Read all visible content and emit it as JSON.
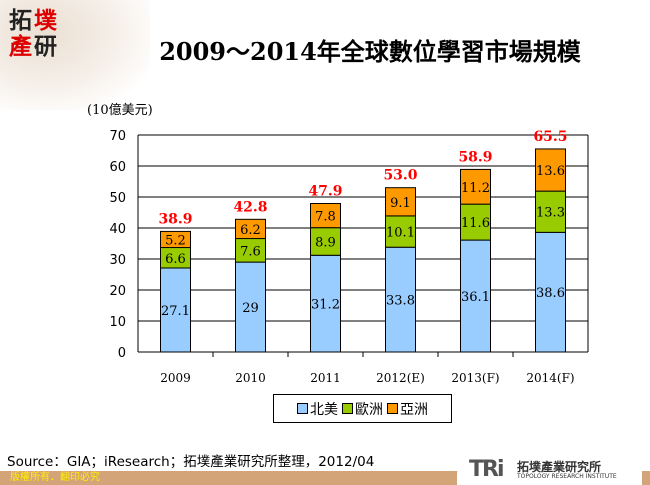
{
  "logo": {
    "chars": [
      "拓",
      "墣",
      "產",
      "研"
    ]
  },
  "title": "2009～2014年全球數位學習市場規模",
  "chart_data": {
    "type": "bar",
    "stacked": true,
    "title": "2009～2014年全球數位學習市場規模",
    "ylabel": "(10億美元)",
    "ylim": [
      0,
      70
    ],
    "yticks": [
      0,
      10,
      20,
      30,
      40,
      50,
      60,
      70
    ],
    "grid": true,
    "legend_position": "bottom",
    "categories": [
      "2009",
      "2010",
      "2011",
      "2012(E)",
      "2013(F)",
      "2014(F)"
    ],
    "series": [
      {
        "name": "北美",
        "color": "#99ccff",
        "values": [
          27.1,
          29,
          31.2,
          33.8,
          36.1,
          38.6
        ],
        "labels": [
          "27.1",
          "29",
          "31.2",
          "33.8",
          "36.1",
          "38.6"
        ]
      },
      {
        "name": "歐洲",
        "color": "#99cc00",
        "values": [
          6.6,
          7.6,
          8.9,
          10.1,
          11.6,
          13.3
        ],
        "labels": [
          "6.6",
          "7.6",
          "8.9",
          "10.1",
          "11.6",
          "13.3"
        ]
      },
      {
        "name": "亞洲",
        "color": "#ff9900",
        "values": [
          5.2,
          6.2,
          7.8,
          9.1,
          11.2,
          13.6
        ],
        "labels": [
          "5.2",
          "6.2",
          "7.8",
          "9.1",
          "11.2",
          "13.6"
        ]
      }
    ],
    "totals": [
      "38.9",
      "42.8",
      "47.9",
      "53.0",
      "58.9",
      "65.5"
    ],
    "total_color": "#ff0000"
  },
  "source": "Source：GIA；iResearch；拓墣產業研究所整理，2012/04",
  "footer": {
    "copyright": "版權所有．翻印必究",
    "brand_mark": "TRi",
    "brand_zh": "拓墣產業研究所",
    "brand_en": "TOPOLOGY RESEARCH INSTITUTE"
  }
}
